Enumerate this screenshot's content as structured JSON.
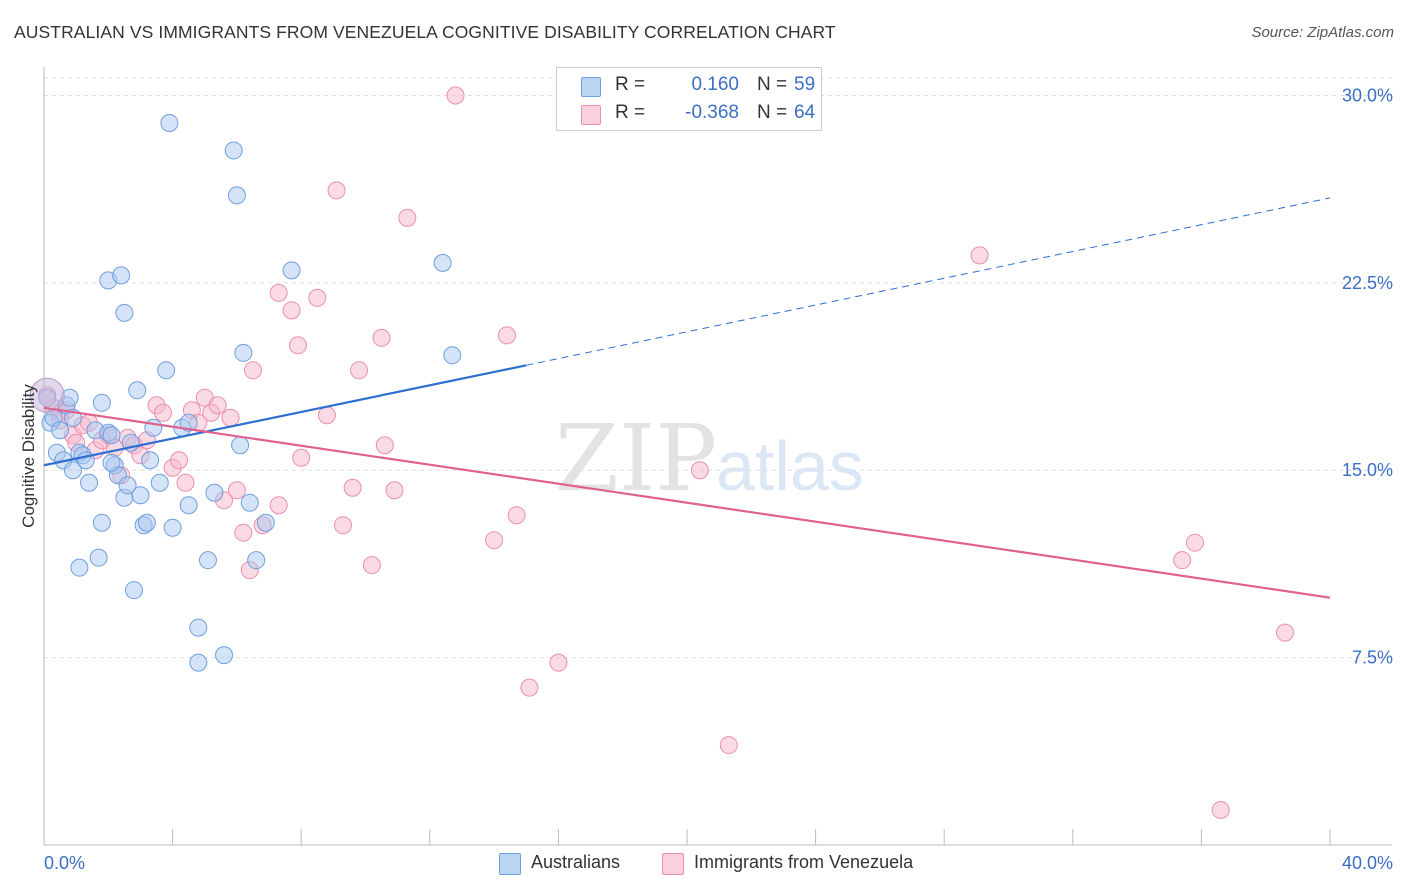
{
  "title": "AUSTRALIAN VS IMMIGRANTS FROM VENEZUELA COGNITIVE DISABILITY CORRELATION CHART",
  "source": "Source: ZipAtlas.com",
  "watermark": {
    "zip": "ZIP",
    "atlas": "atlas"
  },
  "legend": {
    "rows": [
      {
        "r_label": "R =",
        "r_value": "0.160",
        "n_label": "N =",
        "n_value": "59",
        "color": "#a9c8f0"
      },
      {
        "r_label": "R =",
        "r_value": "-0.368",
        "n_label": "N =",
        "n_value": "64",
        "color": "#f6b8cb"
      }
    ]
  },
  "bottom_legend": [
    {
      "label": "Australians",
      "color": "#a9c8f0"
    },
    {
      "label": "Immigrants from Venezuela",
      "color": "#f6b8cb"
    }
  ],
  "colors": {
    "blue_fill": "#a9c8f0",
    "blue_stroke": "#6f9fe0",
    "blue_line": "#2e6fcf",
    "pink_fill": "#f6b8cb",
    "pink_stroke": "#eb8fae",
    "pink_line": "#e0608e",
    "axis_text": "#3a6fc4",
    "grid": "#dddddd"
  },
  "chart_data": {
    "type": "scatter",
    "title": "AUSTRALIAN VS IMMIGRANTS FROM VENEZUELA COGNITIVE DISABILITY CORRELATION CHART",
    "xlabel": "",
    "ylabel": "Cognitive Disability",
    "xlim": [
      0,
      40
    ],
    "ylim": [
      0,
      31.5
    ],
    "x_tick_labels": [
      "0.0%",
      "40.0%"
    ],
    "y_ticks": [
      7.5,
      15.0,
      22.5,
      30.0
    ],
    "y_tick_labels": [
      "7.5%",
      "15.0%",
      "22.5%",
      "30.0%"
    ],
    "grid": "horizontal dashed",
    "legend_position": "top-center",
    "series": [
      {
        "name": "Australians",
        "points": [
          [
            0.1,
            17.9
          ],
          [
            0.2,
            16.9
          ],
          [
            0.3,
            17.1
          ],
          [
            0.4,
            15.7
          ],
          [
            0.5,
            16.6
          ],
          [
            0.6,
            15.4
          ],
          [
            0.7,
            17.6
          ],
          [
            0.8,
            17.9
          ],
          [
            0.9,
            17.1
          ],
          [
            0.9,
            15.0
          ],
          [
            1.1,
            15.7
          ],
          [
            1.2,
            15.6
          ],
          [
            1.3,
            15.4
          ],
          [
            1.4,
            14.5
          ],
          [
            1.6,
            16.6
          ],
          [
            1.7,
            11.5
          ],
          [
            1.8,
            12.9
          ],
          [
            1.8,
            17.7
          ],
          [
            2.0,
            16.5
          ],
          [
            2.0,
            22.6
          ],
          [
            2.1,
            16.4
          ],
          [
            2.2,
            15.2
          ],
          [
            2.3,
            14.8
          ],
          [
            2.4,
            22.8
          ],
          [
            2.5,
            13.9
          ],
          [
            2.5,
            21.3
          ],
          [
            2.6,
            14.4
          ],
          [
            2.7,
            16.1
          ],
          [
            2.8,
            10.2
          ],
          [
            2.9,
            18.2
          ],
          [
            3.0,
            14.0
          ],
          [
            3.1,
            12.8
          ],
          [
            3.2,
            12.9
          ],
          [
            3.3,
            15.4
          ],
          [
            3.4,
            16.7
          ],
          [
            3.6,
            14.5
          ],
          [
            3.8,
            19.0
          ],
          [
            3.9,
            28.9
          ],
          [
            4.0,
            12.7
          ],
          [
            4.3,
            16.7
          ],
          [
            4.5,
            16.9
          ],
          [
            4.5,
            13.6
          ],
          [
            4.8,
            8.7
          ],
          [
            4.8,
            7.3
          ],
          [
            5.1,
            11.4
          ],
          [
            5.3,
            14.1
          ],
          [
            5.6,
            7.6
          ],
          [
            5.9,
            27.8
          ],
          [
            6.0,
            26.0
          ],
          [
            6.1,
            16.0
          ],
          [
            6.2,
            19.7
          ],
          [
            6.4,
            13.7
          ],
          [
            6.6,
            11.4
          ],
          [
            6.9,
            12.9
          ],
          [
            7.7,
            23.0
          ],
          [
            12.4,
            23.3
          ],
          [
            12.7,
            19.6
          ],
          [
            1.1,
            11.1
          ],
          [
            2.1,
            15.3
          ]
        ]
      },
      {
        "name": "Immigrants from Venezuela",
        "points": [
          [
            0.1,
            18.0
          ],
          [
            0.3,
            17.5
          ],
          [
            0.5,
            17.3
          ],
          [
            0.7,
            17.4
          ],
          [
            0.9,
            16.4
          ],
          [
            1.0,
            16.1
          ],
          [
            1.2,
            16.8
          ],
          [
            1.4,
            16.9
          ],
          [
            1.6,
            15.8
          ],
          [
            1.8,
            16.2
          ],
          [
            2.0,
            16.4
          ],
          [
            2.2,
            15.9
          ],
          [
            2.4,
            14.8
          ],
          [
            2.6,
            16.3
          ],
          [
            2.8,
            16.0
          ],
          [
            3.0,
            15.6
          ],
          [
            3.2,
            16.2
          ],
          [
            3.5,
            17.6
          ],
          [
            3.7,
            17.3
          ],
          [
            4.0,
            15.1
          ],
          [
            4.2,
            15.4
          ],
          [
            4.4,
            14.5
          ],
          [
            4.6,
            17.4
          ],
          [
            4.8,
            16.9
          ],
          [
            5.0,
            17.9
          ],
          [
            5.2,
            17.3
          ],
          [
            5.4,
            17.6
          ],
          [
            5.6,
            13.8
          ],
          [
            5.8,
            17.1
          ],
          [
            6.0,
            14.2
          ],
          [
            6.2,
            12.5
          ],
          [
            6.4,
            11.0
          ],
          [
            6.5,
            19.0
          ],
          [
            6.8,
            12.8
          ],
          [
            7.3,
            13.6
          ],
          [
            7.3,
            22.1
          ],
          [
            7.7,
            21.4
          ],
          [
            7.9,
            20.0
          ],
          [
            8.0,
            15.5
          ],
          [
            8.5,
            21.9
          ],
          [
            8.8,
            17.2
          ],
          [
            9.1,
            26.2
          ],
          [
            9.3,
            12.8
          ],
          [
            9.6,
            14.3
          ],
          [
            9.8,
            19.0
          ],
          [
            10.2,
            11.2
          ],
          [
            10.5,
            20.3
          ],
          [
            10.6,
            16.0
          ],
          [
            10.9,
            14.2
          ],
          [
            11.3,
            25.1
          ],
          [
            12.8,
            30.0
          ],
          [
            14.0,
            12.2
          ],
          [
            14.4,
            20.4
          ],
          [
            14.7,
            13.2
          ],
          [
            15.1,
            6.3
          ],
          [
            16.0,
            7.3
          ],
          [
            20.4,
            15.0
          ],
          [
            21.3,
            4.0
          ],
          [
            29.1,
            23.6
          ],
          [
            35.4,
            11.4
          ],
          [
            35.8,
            12.1
          ],
          [
            38.6,
            8.5
          ],
          [
            36.6,
            1.4
          ],
          [
            0.5,
            17.0
          ]
        ]
      }
    ],
    "trend_lines": [
      {
        "series": "Australians",
        "x": [
          0,
          15
        ],
        "y": [
          15.2,
          19.2
        ],
        "extended_dashed_to": [
          40,
          25.9
        ]
      },
      {
        "series": "Immigrants from Venezuela",
        "x": [
          0,
          40
        ],
        "y": [
          17.5,
          9.9
        ]
      }
    ]
  }
}
